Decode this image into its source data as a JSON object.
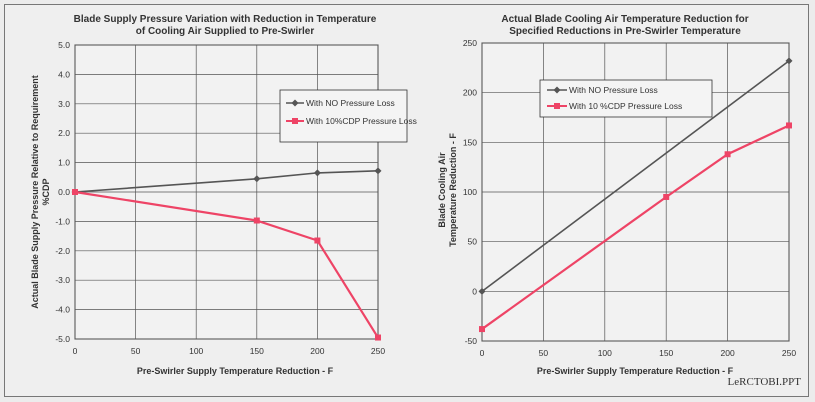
{
  "chart_data": [
    {
      "type": "line",
      "title_lines": [
        "Blade Supply Pressure Variation with Reduction in Temperature",
        "of Cooling Air Supplied to Pre-Swirler"
      ],
      "xlabel": "Pre-Swirler Supply Temperature Reduction - F",
      "ylabel_lines": [
        "Actual Blade Supply Pressure Relative to Requirement",
        "%CDP"
      ],
      "xlim": [
        0,
        250
      ],
      "ylim": [
        -5.0,
        5.0
      ],
      "xticks": [
        0,
        50,
        100,
        150,
        200,
        250
      ],
      "yticks": [
        5.0,
        4.0,
        3.0,
        2.0,
        1.0,
        0.0,
        -1.0,
        -2.0,
        -3.0,
        -4.0,
        -5.0
      ],
      "ytick_labels": [
        "5.0",
        "4.0",
        "3.0",
        "2.0",
        "1.0",
        "0.0",
        "-1.0",
        "-2.0",
        "-3.0",
        "-4.0",
        "-5.0"
      ],
      "grid": true,
      "legend_position": "top-right",
      "series": [
        {
          "name": "With NO Pressure Loss",
          "color": "#555555",
          "marker": "diamond",
          "x": [
            0,
            150,
            200,
            250
          ],
          "y": [
            0.0,
            0.45,
            0.65,
            0.72
          ]
        },
        {
          "name": "With 10%CDP Pressure Loss",
          "color": "#ee4466",
          "marker": "square",
          "x": [
            0,
            150,
            200,
            250
          ],
          "y": [
            0.0,
            -0.97,
            -1.65,
            -4.95
          ]
        }
      ]
    },
    {
      "type": "line",
      "title_lines": [
        "Actual Blade Cooling Air Temperature Reduction for",
        "Specified Reductions in Pre-Swirler Temperature"
      ],
      "xlabel": "Pre-Swirler Supply Temperature Reduction - F",
      "ylabel_lines": [
        "Blade Cooling Air",
        "Temperature Reduction - F"
      ],
      "xlim": [
        0,
        250
      ],
      "ylim": [
        -50,
        250
      ],
      "xticks": [
        0,
        50,
        100,
        150,
        200,
        250
      ],
      "yticks": [
        250,
        200,
        150,
        100,
        50,
        0,
        -50
      ],
      "ytick_labels": [
        "250",
        "200",
        "150",
        "100",
        "50",
        "0",
        "-50"
      ],
      "grid": true,
      "legend_position": "top-left",
      "series": [
        {
          "name": "With NO Pressure Loss",
          "color": "#555555",
          "marker": "diamond",
          "x": [
            0,
            250
          ],
          "y": [
            0,
            232
          ]
        },
        {
          "name": "With 10 %CDP Pressure Loss",
          "color": "#ee4466",
          "marker": "square",
          "x": [
            0,
            150,
            200,
            250
          ],
          "y": [
            -38,
            95,
            138,
            167
          ]
        }
      ]
    }
  ],
  "footer": "LeRCTOBI.PPT"
}
